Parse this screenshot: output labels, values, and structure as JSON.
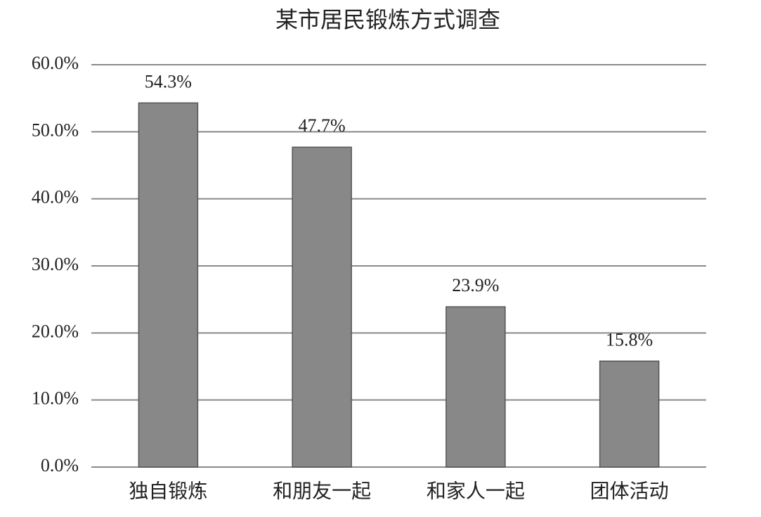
{
  "chart_data": {
    "type": "bar",
    "title": "某市居民锻炼方式调查",
    "categories": [
      "独自锻炼",
      "和朋友一起",
      "和家人一起",
      "团体活动"
    ],
    "values": [
      54.3,
      47.7,
      23.9,
      15.8
    ],
    "value_labels": [
      "54.3%",
      "47.7%",
      "23.9%",
      "15.8%"
    ],
    "color": "#888888",
    "ylim": [
      0,
      60
    ],
    "yticks": [
      {
        "value": 0,
        "label": "0.0%"
      },
      {
        "value": 10,
        "label": "10.0%"
      },
      {
        "value": 20,
        "label": "20.0%"
      },
      {
        "value": 30,
        "label": "30.0%"
      },
      {
        "value": 40,
        "label": "40.0%"
      },
      {
        "value": 50,
        "label": "50.0%"
      },
      {
        "value": 60,
        "label": "60.0%"
      }
    ],
    "grid": true
  }
}
